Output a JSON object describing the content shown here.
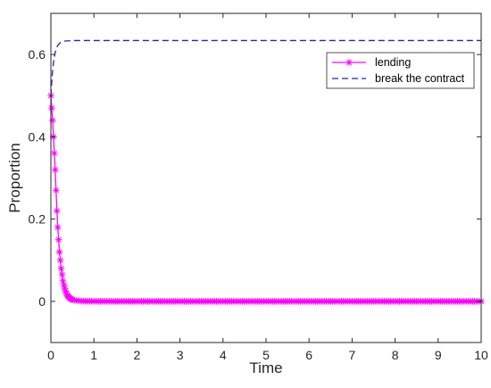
{
  "chart_data": {
    "type": "line",
    "title": "",
    "xlabel": "Time",
    "ylabel": "Proportion",
    "xlim": [
      0,
      10
    ],
    "ylim": [
      -0.1,
      0.7
    ],
    "xticks": [
      0,
      1,
      2,
      3,
      4,
      5,
      6,
      7,
      8,
      9,
      10
    ],
    "xtick_labels": [
      "0",
      "1",
      "2",
      "3",
      "4",
      "5",
      "6",
      "7",
      "8",
      "9",
      "10"
    ],
    "yticks": [
      0,
      0.2,
      0.4,
      0.6
    ],
    "ytick_labels": [
      "0",
      "0.2",
      "0.4",
      "0.6"
    ],
    "grid": false,
    "legend_position": "top-right",
    "series": [
      {
        "name": "lending",
        "color": "#ff00ff",
        "line_style": "solid",
        "marker": "asterisk",
        "x": [
          0,
          0.02,
          0.04,
          0.06,
          0.08,
          0.1,
          0.12,
          0.14,
          0.16,
          0.18,
          0.2,
          0.22,
          0.24,
          0.26,
          0.28,
          0.3,
          0.33,
          0.36,
          0.4,
          0.45,
          0.5,
          0.6,
          0.7,
          0.8,
          0.9,
          1,
          1.5,
          2,
          3,
          4,
          5,
          6,
          7,
          8,
          9,
          10
        ],
        "values": [
          0.5,
          0.47,
          0.44,
          0.4,
          0.36,
          0.32,
          0.27,
          0.22,
          0.18,
          0.15,
          0.12,
          0.1,
          0.08,
          0.065,
          0.05,
          0.04,
          0.028,
          0.019,
          0.012,
          0.007,
          0.004,
          0.002,
          0.001,
          0.0005,
          0.0003,
          0.0002,
          0,
          0,
          0,
          0,
          0,
          0,
          0,
          0,
          0,
          0
        ]
      },
      {
        "name": "break the contract",
        "color": "#2222cc",
        "line_style": "dashed",
        "marker": "none",
        "x": [
          0,
          0.03,
          0.06,
          0.1,
          0.14,
          0.18,
          0.22,
          0.26,
          0.3,
          0.35,
          0.4,
          0.5,
          0.6,
          0.8,
          1,
          2,
          4,
          6,
          8,
          10
        ],
        "values": [
          0.5,
          0.55,
          0.58,
          0.605,
          0.618,
          0.625,
          0.629,
          0.631,
          0.632,
          0.633,
          0.633,
          0.634,
          0.634,
          0.634,
          0.634,
          0.634,
          0.634,
          0.634,
          0.634,
          0.634
        ]
      }
    ]
  }
}
